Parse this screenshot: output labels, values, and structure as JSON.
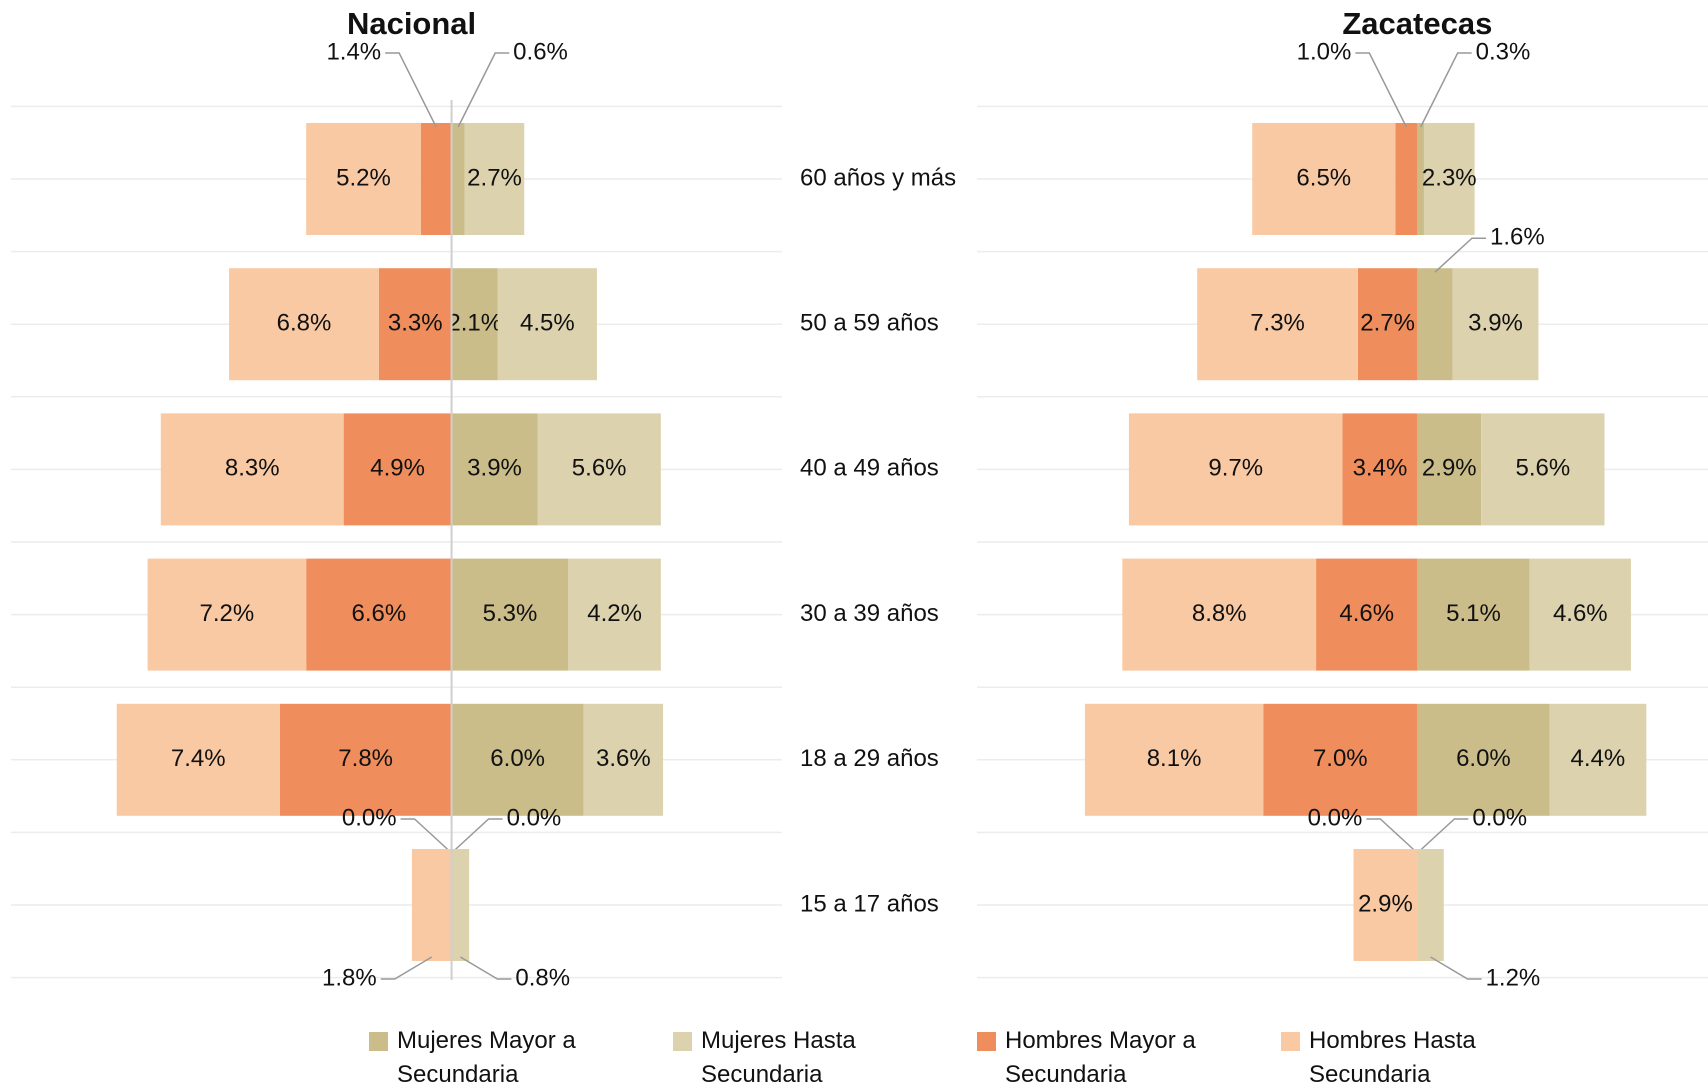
{
  "chart_data": [
    {
      "type": "bar",
      "title": "Nacional",
      "categories": [
        "60 años y más",
        "50 a 59 años",
        "40 a 49 años",
        "30 a 39 años",
        "18 a 29 años",
        "15 a 17 años"
      ],
      "xlim": [
        -20,
        15
      ],
      "axis_line": true,
      "series": [
        {
          "name": "Mujeres Mayor a Secundaria",
          "color": "#cbbd8a",
          "side": "right",
          "values": [
            0.6,
            2.1,
            3.9,
            5.3,
            6.0,
            0.0
          ],
          "value_labels": [
            "0.6%",
            "2.1%",
            "3.9%",
            "5.3%",
            "6.0%",
            "0.0%"
          ]
        },
        {
          "name": "Mujeres Hasta Secundaria",
          "color": "#ddd2ae",
          "side": "right",
          "values": [
            2.7,
            4.5,
            5.6,
            4.2,
            3.6,
            0.8
          ],
          "value_labels": [
            "2.7%",
            "4.5%",
            "5.6%",
            "4.2%",
            "3.6%",
            "0.8%"
          ]
        },
        {
          "name": "Hombres Mayor a Secundaria",
          "color": "#ef8e5c",
          "side": "left",
          "values": [
            1.4,
            3.3,
            4.9,
            6.6,
            7.8,
            0.0
          ],
          "value_labels": [
            "1.4%",
            "3.3%",
            "4.9%",
            "6.6%",
            "7.8%",
            "0.0%"
          ]
        },
        {
          "name": "Hombres Hasta Secundaria",
          "color": "#f9c9a3",
          "side": "left",
          "values": [
            5.2,
            6.8,
            8.3,
            7.2,
            7.4,
            1.8
          ],
          "value_labels": [
            "5.2%",
            "6.8%",
            "8.3%",
            "7.2%",
            "7.4%",
            "1.8%"
          ]
        }
      ]
    },
    {
      "type": "bar",
      "title": "Zacatecas",
      "xlim": [
        -20,
        13.2
      ],
      "axis_line": false,
      "series": [
        {
          "color": "#cbbd8a",
          "side": "right",
          "values": [
            0.3,
            1.6,
            2.9,
            5.1,
            6.0,
            0.0
          ],
          "value_labels": [
            "0.3%",
            "1.6%",
            "2.9%",
            "5.1%",
            "6.0%",
            "0.0%"
          ]
        },
        {
          "color": "#ddd2ae",
          "side": "right",
          "values": [
            2.3,
            3.9,
            5.6,
            4.6,
            4.4,
            1.2
          ],
          "value_labels": [
            "2.3%",
            "3.9%",
            "5.6%",
            "4.6%",
            "4.4%",
            "1.2%"
          ]
        },
        {
          "color": "#ef8e5c",
          "side": "left",
          "values": [
            1.0,
            2.7,
            3.4,
            4.6,
            7.0,
            0.0
          ],
          "value_labels": [
            "1.0%",
            "2.7%",
            "3.4%",
            "4.6%",
            "7.0%",
            "0.0%"
          ]
        },
        {
          "color": "#f9c9a3",
          "side": "left",
          "values": [
            6.5,
            7.3,
            9.7,
            8.8,
            8.1,
            2.9
          ],
          "value_labels": [
            "6.5%",
            "7.3%",
            "9.7%",
            "8.8%",
            "8.1%",
            "2.9%"
          ]
        }
      ]
    }
  ]
}
